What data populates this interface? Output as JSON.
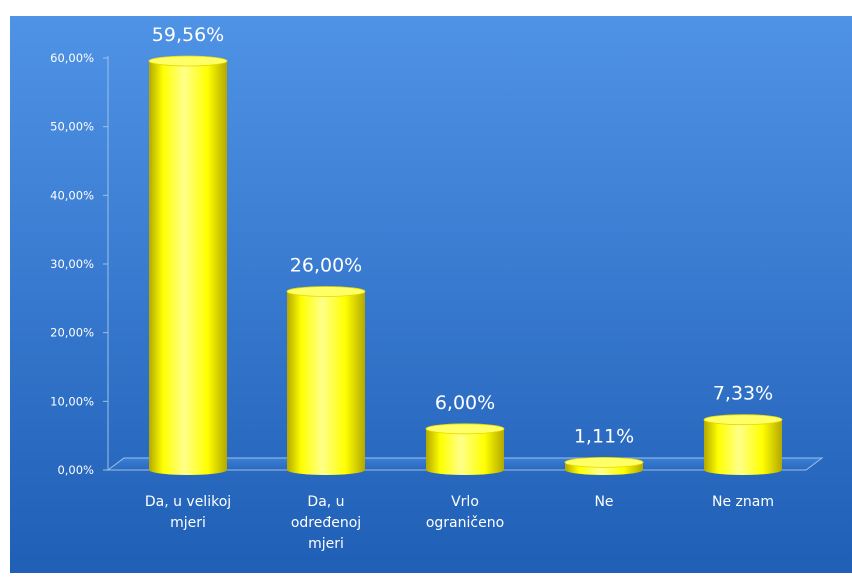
{
  "chart_data": {
    "type": "bar",
    "title": "",
    "xlabel": "",
    "ylabel": "",
    "categories": [
      [
        "Da, u velikoj",
        "mjeri"
      ],
      [
        "Da, u",
        "određenoj",
        "mjeri"
      ],
      [
        "Vrlo",
        "ograničeno"
      ],
      [
        "Ne"
      ],
      [
        "Ne znam"
      ]
    ],
    "values": [
      59.56,
      26.0,
      6.0,
      1.11,
      7.33
    ],
    "data_labels": [
      "59,56%",
      "26,00%",
      "6,00%",
      "1,11%",
      "7,33%"
    ],
    "y_ticks": [
      "0,00%",
      "10,00%",
      "20,00%",
      "30,00%",
      "40,00%",
      "50,00%",
      "60,00%"
    ],
    "ylim": [
      0,
      60
    ],
    "grid": false,
    "legend": "none",
    "colors": {
      "background_top": "#4f93e6",
      "background_bottom": "#1f5fb6",
      "bar_main": "#ffff00",
      "bar_dark": "#b3a800",
      "bar_top": "#ffff66",
      "text": "#ffffff",
      "axis": "#9fbfe8"
    }
  }
}
